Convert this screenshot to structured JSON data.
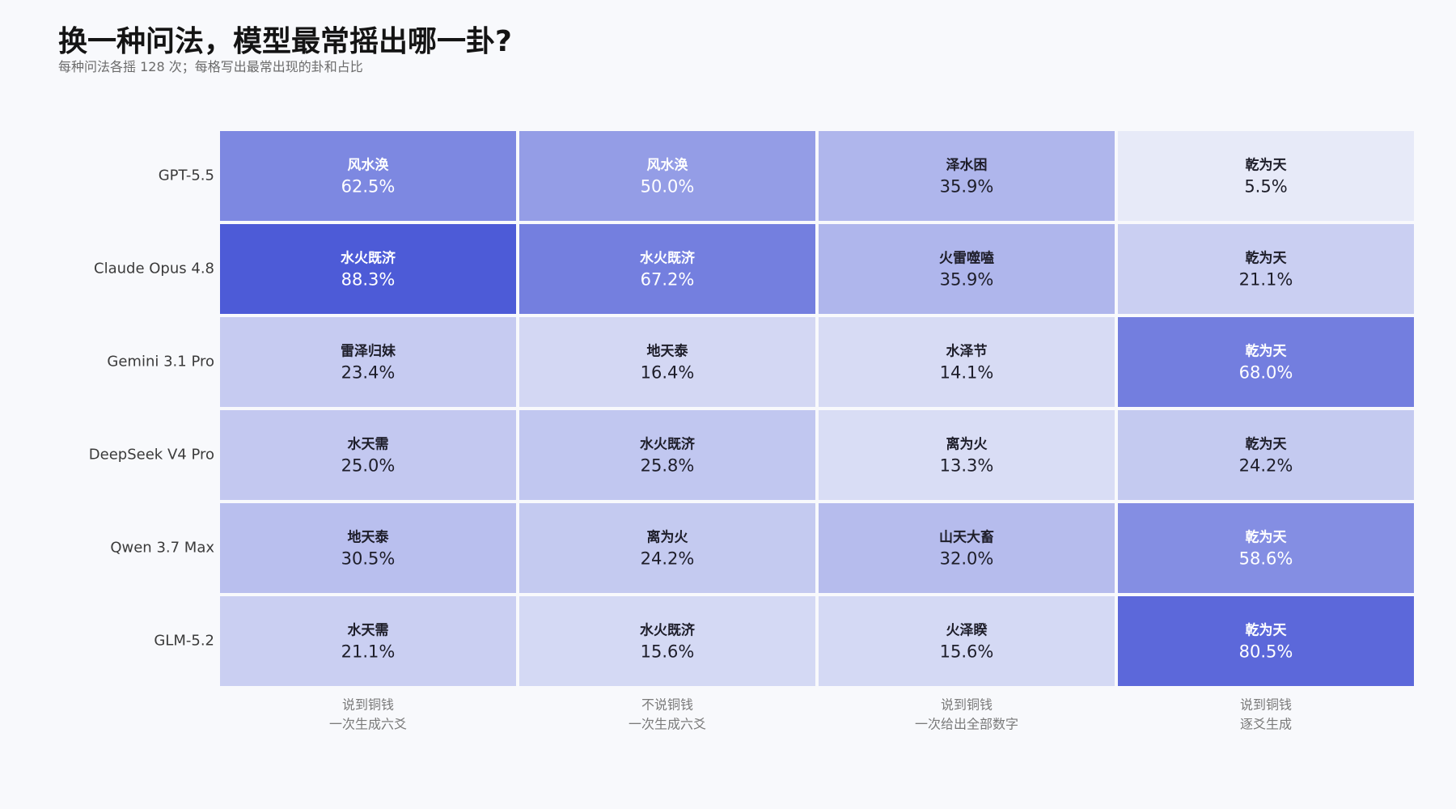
{
  "header": {
    "title": "换一种问法，模型最常摇出哪一卦?",
    "subtitle": "每种问法各摇 128 次；每格写出最常出现的卦和占比"
  },
  "colors": {
    "low": "#e8ebf8",
    "high": "#4a58d6",
    "text_dark": "#1e1e2a",
    "text_light": "#ffffff"
  },
  "chart_data": {
    "type": "heatmap",
    "title": "换一种问法，模型最常摇出哪一卦?",
    "subtitle": "每种问法各摇 128 次；每格写出最常出现的卦和占比",
    "rows": [
      "GPT-5.5",
      "Claude Opus 4.8",
      "Gemini 3.1 Pro",
      "DeepSeek V4 Pro",
      "Qwen 3.7 Max",
      "GLM-5.2"
    ],
    "columns": [
      [
        "说到铜钱",
        "一次生成六爻"
      ],
      [
        "不说铜钱",
        "一次生成六爻"
      ],
      [
        "说到铜钱",
        "一次给出全部数字"
      ],
      [
        "说到铜钱",
        "逐爻生成"
      ]
    ],
    "cells": [
      [
        {
          "hexagram": "风水涣",
          "pct": 62.5
        },
        {
          "hexagram": "风水涣",
          "pct": 50.0
        },
        {
          "hexagram": "泽水困",
          "pct": 35.9
        },
        {
          "hexagram": "乾为天",
          "pct": 5.5
        }
      ],
      [
        {
          "hexagram": "水火既济",
          "pct": 88.3
        },
        {
          "hexagram": "水火既济",
          "pct": 67.2
        },
        {
          "hexagram": "火雷噬嗑",
          "pct": 35.9
        },
        {
          "hexagram": "乾为天",
          "pct": 21.1
        }
      ],
      [
        {
          "hexagram": "雷泽归妹",
          "pct": 23.4
        },
        {
          "hexagram": "地天泰",
          "pct": 16.4
        },
        {
          "hexagram": "水泽节",
          "pct": 14.1
        },
        {
          "hexagram": "乾为天",
          "pct": 68.0
        }
      ],
      [
        {
          "hexagram": "水天需",
          "pct": 25.0
        },
        {
          "hexagram": "水火既济",
          "pct": 25.8
        },
        {
          "hexagram": "离为火",
          "pct": 13.3
        },
        {
          "hexagram": "乾为天",
          "pct": 24.2
        }
      ],
      [
        {
          "hexagram": "地天泰",
          "pct": 30.5
        },
        {
          "hexagram": "离为火",
          "pct": 24.2
        },
        {
          "hexagram": "山天大畜",
          "pct": 32.0
        },
        {
          "hexagram": "乾为天",
          "pct": 58.6
        }
      ],
      [
        {
          "hexagram": "水天需",
          "pct": 21.1
        },
        {
          "hexagram": "水火既济",
          "pct": 15.6
        },
        {
          "hexagram": "火泽睽",
          "pct": 15.6
        },
        {
          "hexagram": "乾为天",
          "pct": 80.5
        }
      ]
    ],
    "value_unit": "%",
    "grid": false,
    "legend": "none"
  }
}
